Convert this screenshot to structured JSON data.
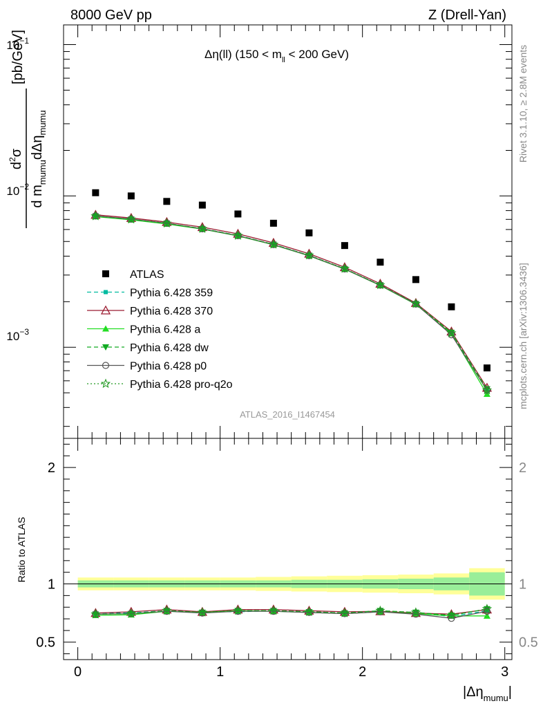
{
  "header": {
    "left": "8000 GeV pp",
    "right": "Z (Drell-Yan)"
  },
  "side_labels": {
    "rivet": "Rivet 3.1.10, ≥ 2.8M events",
    "mcplots": "mcplots.cern.ch [arXiv:1306.3436]"
  },
  "chart_data": [
    {
      "type": "scatter",
      "title": "Δη(ll) (150 < m_ll < 200 GeV)",
      "title_parts": {
        "main": "Δη(ll) (150 < m",
        "sub": "ll",
        "tail": " < 200 GeV)"
      },
      "analysis_label": "ATLAS_2016_I1467454",
      "ylabel": "d²σ / d m_mumu dΔη_mumu [pb/GeV]",
      "ylabel_parts": {
        "num": "d",
        "num_sup": "2",
        "num_tail": "σ",
        "den1": "d m",
        "den1_sub": "mumu",
        "den2": "dΔη",
        "den2_sub": "mumu",
        "unit": "[pb/GeV]"
      },
      "yscale": "log",
      "ylim": [
        0.00025,
        0.135
      ],
      "xlim": [
        -0.1,
        3.05
      ],
      "ytick_labels": {
        "e1": "10",
        "e1_exp": "−1",
        "e2": "10",
        "e2_exp": "−2",
        "e3": "10",
        "e3_exp": "−3"
      },
      "x": [
        0.125,
        0.375,
        0.625,
        0.875,
        1.125,
        1.375,
        1.625,
        1.875,
        2.125,
        2.375,
        2.625,
        2.875
      ],
      "series": [
        {
          "name": "ATLAS",
          "color": "#000000",
          "style": "data",
          "marker": "square",
          "values": [
            0.0105,
            0.01,
            0.0092,
            0.0087,
            0.0076,
            0.0066,
            0.0057,
            0.0047,
            0.00365,
            0.0028,
            0.00185,
            0.00073
          ]
        },
        {
          "name": "Pythia 6.428 359",
          "color": "#00bba0",
          "style": "dashed",
          "marker": "small-square",
          "values": [
            0.00735,
            0.007,
            0.00658,
            0.00608,
            0.00548,
            0.00478,
            0.00405,
            0.0033,
            0.00258,
            0.00193,
            0.00124,
            0.00052
          ]
        },
        {
          "name": "Pythia 6.428 370",
          "color": "#9b1b30",
          "style": "solid",
          "marker": "open-triangle",
          "values": [
            0.0075,
            0.00715,
            0.00672,
            0.00622,
            0.00562,
            0.0049,
            0.00415,
            0.00338,
            0.00263,
            0.00196,
            0.00127,
            0.00054
          ]
        },
        {
          "name": "Pythia 6.428 a",
          "color": "#22dd22",
          "style": "solid",
          "marker": "filled-triangle",
          "values": [
            0.0073,
            0.00695,
            0.00652,
            0.00604,
            0.00544,
            0.00475,
            0.00402,
            0.00328,
            0.00256,
            0.00192,
            0.00123,
            0.00049
          ]
        },
        {
          "name": "Pythia 6.428 dw",
          "color": "#11aa22",
          "style": "dashed",
          "marker": "filled-triangle-down",
          "values": [
            0.00735,
            0.007,
            0.0066,
            0.00607,
            0.00547,
            0.00478,
            0.00404,
            0.0033,
            0.00258,
            0.00194,
            0.00125,
            0.00053
          ]
        },
        {
          "name": "Pythia 6.428 p0",
          "color": "#555555",
          "style": "solid",
          "marker": "open-circle",
          "values": [
            0.00738,
            0.00703,
            0.0066,
            0.00606,
            0.00546,
            0.00477,
            0.00403,
            0.00329,
            0.00257,
            0.00193,
            0.00121,
            0.00052
          ]
        },
        {
          "name": "Pythia 6.428 pro-q2o",
          "color": "#229922",
          "style": "dotted",
          "marker": "open-star",
          "values": [
            0.00736,
            0.00701,
            0.00659,
            0.00607,
            0.00547,
            0.00478,
            0.00405,
            0.00331,
            0.00258,
            0.00194,
            0.00124,
            0.00052
          ]
        }
      ]
    },
    {
      "type": "scatter",
      "ylabel": "Ratio to ATLAS",
      "xlabel": "|Δη_mumu|",
      "xlabel_parts": {
        "main": "|Δη",
        "sub": "mumu",
        "tail": "|"
      },
      "ylim": [
        0.35,
        2.25
      ],
      "xlim": [
        -0.1,
        3.05
      ],
      "xticks": [
        0,
        1,
        2,
        3
      ],
      "xtick_labels": [
        "0",
        "1",
        "2",
        "3"
      ],
      "yticks": [
        0.5,
        1,
        2
      ],
      "ytick_labels": [
        "0.5",
        "1",
        "2"
      ],
      "band_edges": [
        0.0,
        0.25,
        0.5,
        0.75,
        1.0,
        1.25,
        1.5,
        1.75,
        2.0,
        2.25,
        2.5,
        2.75,
        3.0
      ],
      "stat_band": [
        0.03,
        0.03,
        0.03,
        0.03,
        0.03,
        0.03,
        0.035,
        0.035,
        0.04,
        0.045,
        0.055,
        0.1
      ],
      "total_band": [
        0.055,
        0.055,
        0.055,
        0.055,
        0.055,
        0.06,
        0.065,
        0.07,
        0.075,
        0.08,
        0.09,
        0.135
      ],
      "stat_color": "#99ee99",
      "total_color": "#ffff99",
      "x": [
        0.125,
        0.375,
        0.625,
        0.875,
        1.125,
        1.375,
        1.625,
        1.875,
        2.125,
        2.375,
        2.625,
        2.875
      ],
      "series": [
        {
          "name": "Pythia 6.428 359",
          "color": "#00bba0",
          "style": "dashed",
          "marker": "small-square",
          "values": [
            0.75,
            0.75,
            0.77,
            0.76,
            0.76,
            0.77,
            0.76,
            0.75,
            0.77,
            0.75,
            0.72,
            0.77
          ]
        },
        {
          "name": "Pythia 6.428 370",
          "color": "#9b1b30",
          "style": "solid",
          "marker": "open-triangle",
          "values": [
            0.75,
            0.76,
            0.78,
            0.76,
            0.78,
            0.78,
            0.77,
            0.76,
            0.765,
            0.75,
            0.74,
            0.78
          ]
        },
        {
          "name": "Pythia 6.428 a",
          "color": "#22dd22",
          "style": "solid",
          "marker": "filled-triangle",
          "values": [
            0.73,
            0.735,
            0.765,
            0.755,
            0.77,
            0.765,
            0.755,
            0.745,
            0.76,
            0.745,
            0.725,
            0.725
          ]
        },
        {
          "name": "Pythia 6.428 dw",
          "color": "#11aa22",
          "style": "dashed",
          "marker": "filled-triangle-down",
          "values": [
            0.74,
            0.745,
            0.77,
            0.755,
            0.77,
            0.77,
            0.76,
            0.75,
            0.77,
            0.755,
            0.73,
            0.785
          ]
        },
        {
          "name": "Pythia 6.428 p0",
          "color": "#555555",
          "style": "solid",
          "marker": "open-circle",
          "values": [
            0.74,
            0.745,
            0.765,
            0.75,
            0.765,
            0.765,
            0.755,
            0.745,
            0.76,
            0.74,
            0.705,
            0.765
          ]
        },
        {
          "name": "Pythia 6.428 pro-q2o",
          "color": "#229922",
          "style": "dotted",
          "marker": "open-star",
          "values": [
            0.74,
            0.745,
            0.77,
            0.755,
            0.77,
            0.77,
            0.76,
            0.75,
            0.77,
            0.755,
            0.73,
            0.785
          ]
        }
      ]
    }
  ]
}
